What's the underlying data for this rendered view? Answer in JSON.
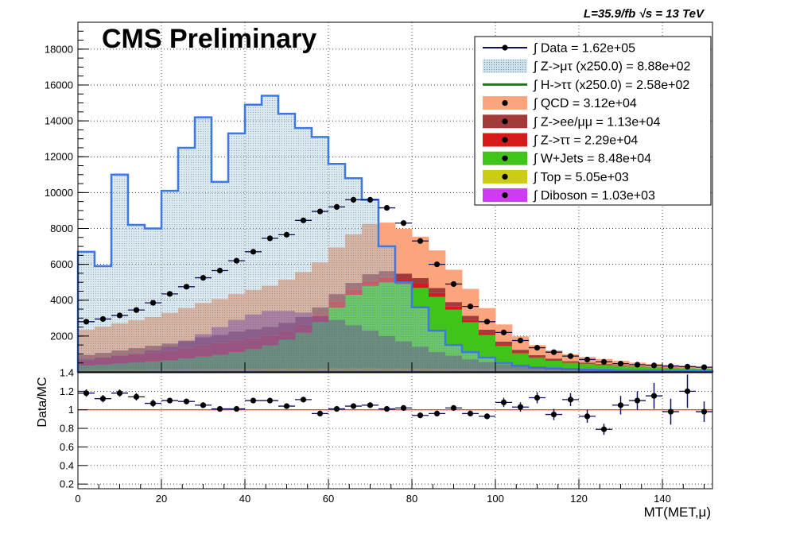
{
  "header": {
    "lumi_label": "L=35.9/fb  √s = 13 TeV",
    "experiment_label": "CMS Preliminary"
  },
  "colors": {
    "data": "#10105e",
    "qcd": "#fca47c",
    "zll": "#a43b3b",
    "ztt": "#d41a1a",
    "wjets": "#41c41a",
    "top": "#cccc14",
    "diboson": "#cc3cf0",
    "zmutau": "#a8c8d8",
    "htt": "#1a7a1a",
    "ratio_line": "#ff0000",
    "grid": "#000000"
  },
  "legend": [
    {
      "key": "data",
      "label": "∫ Data = 1.62e+05",
      "style": "marker"
    },
    {
      "key": "zmutau",
      "label": "∫ Z->μτ (x250.0) = 8.88e+02",
      "style": "hatch"
    },
    {
      "key": "htt",
      "label": "∫ H->ττ (x250.0) = 2.58e+02",
      "style": "line"
    },
    {
      "key": "qcd",
      "label": "∫ QCD = 3.12e+04",
      "style": "fill"
    },
    {
      "key": "zll",
      "label": "∫ Z->ee/μμ = 1.13e+04",
      "style": "fill"
    },
    {
      "key": "ztt",
      "label": "∫ Z->ττ = 2.29e+04",
      "style": "fill"
    },
    {
      "key": "wjets",
      "label": "∫ W+Jets = 8.48e+04",
      "style": "fill"
    },
    {
      "key": "top",
      "label": "∫ Top = 5.05e+03",
      "style": "fill"
    },
    {
      "key": "diboson",
      "label": "∫ Diboson = 1.03e+03",
      "style": "fill"
    }
  ],
  "chart_data": {
    "type": "bar",
    "xlabel": "MT(MET,μ)",
    "ylabel": "",
    "ratio_ylabel": "Data/MC",
    "xlim": [
      0,
      152
    ],
    "ylim": [
      0,
      19500
    ],
    "ratio_ylim": [
      0.15,
      1.4
    ],
    "x_ticks": [
      0,
      20,
      40,
      60,
      80,
      100,
      120,
      140
    ],
    "y_ticks": [
      2000,
      4000,
      6000,
      8000,
      10000,
      12000,
      14000,
      16000,
      18000
    ],
    "ratio_ticks": [
      0.2,
      0.4,
      0.6,
      0.8,
      1,
      1.2,
      1.4
    ],
    "grid": true,
    "legend_position": "top-right",
    "bin_edges": [
      0,
      4,
      8,
      12,
      16,
      20,
      24,
      28,
      32,
      36,
      40,
      44,
      48,
      52,
      56,
      60,
      64,
      68,
      72,
      76,
      80,
      84,
      88,
      92,
      96,
      100,
      104,
      108,
      112,
      116,
      120,
      124,
      128,
      132,
      136,
      140,
      144,
      148,
      152
    ],
    "series": [
      {
        "name": "Diboson",
        "key": "diboson",
        "values": [
          20,
          20,
          25,
          25,
          30,
          30,
          30,
          35,
          35,
          35,
          40,
          40,
          40,
          40,
          40,
          40,
          40,
          40,
          35,
          35,
          30,
          30,
          25,
          25,
          20,
          20,
          15,
          15,
          15,
          10,
          10,
          10,
          10,
          5,
          5,
          5,
          5,
          5
        ]
      },
      {
        "name": "Top",
        "key": "top",
        "values": [
          80,
          85,
          90,
          95,
          100,
          105,
          110,
          115,
          120,
          125,
          130,
          135,
          140,
          140,
          145,
          150,
          150,
          150,
          150,
          150,
          150,
          145,
          140,
          135,
          130,
          125,
          120,
          115,
          110,
          100,
          95,
          90,
          80,
          75,
          70,
          65,
          60,
          55
        ]
      },
      {
        "name": "W+Jets",
        "key": "wjets",
        "values": [
          250,
          300,
          350,
          400,
          450,
          500,
          600,
          700,
          800,
          950,
          1100,
          1300,
          1600,
          2000,
          2600,
          3400,
          4100,
          4600,
          4800,
          4700,
          4500,
          4000,
          3300,
          2600,
          1900,
          1300,
          900,
          650,
          500,
          400,
          330,
          280,
          240,
          200,
          170,
          150,
          130,
          110
        ]
      },
      {
        "name": "Z->ττ",
        "key": "ztt",
        "values": [
          300,
          350,
          400,
          450,
          500,
          550,
          600,
          650,
          650,
          650,
          600,
          550,
          500,
          450,
          400,
          350,
          300,
          300,
          300,
          280,
          260,
          220,
          180,
          150,
          120,
          90,
          70,
          50,
          40,
          30,
          25,
          20,
          15,
          10,
          10,
          8,
          6,
          5
        ]
      },
      {
        "name": "Z->ee/μμ",
        "key": "zll",
        "values": [
          300,
          320,
          340,
          360,
          380,
          400,
          420,
          440,
          460,
          480,
          500,
          480,
          460,
          440,
          420,
          400,
          380,
          360,
          340,
          320,
          300,
          280,
          250,
          220,
          190,
          160,
          130,
          100,
          80,
          60,
          50,
          40,
          30,
          25,
          20,
          15,
          10,
          8
        ]
      },
      {
        "name": "QCD",
        "key": "qcd",
        "values": [
          1400,
          1450,
          1500,
          1550,
          1600,
          1700,
          1800,
          1900,
          2000,
          2100,
          2200,
          2300,
          2400,
          2500,
          2500,
          2600,
          2700,
          2800,
          2700,
          2500,
          2300,
          2100,
          1800,
          1500,
          1200,
          950,
          750,
          560,
          450,
          380,
          320,
          280,
          240,
          200,
          170,
          150,
          130,
          110
        ]
      }
    ],
    "signal_series": [
      {
        "name": "Z->μτ (x250.0)",
        "key": "zmutau",
        "values": [
          6700,
          5900,
          11000,
          8200,
          8000,
          10100,
          12500,
          14200,
          10600,
          13300,
          14900,
          15400,
          14400,
          13600,
          13100,
          11600,
          10800,
          9600,
          7000,
          5000,
          3600,
          2300,
          1500,
          1100,
          800,
          500,
          350,
          250,
          200,
          160,
          130,
          110,
          90,
          80,
          70,
          60,
          50,
          40
        ]
      },
      {
        "name": "H->ττ (x250.0)",
        "key": "htt",
        "values": [
          700,
          800,
          900,
          1000,
          1200,
          1400,
          1700,
          2100,
          2500,
          2900,
          3200,
          3400,
          3400,
          3300,
          3100,
          2900,
          2600,
          2300,
          2000,
          1700,
          1400,
          1100,
          900,
          700,
          550,
          420,
          330,
          260,
          200,
          160,
          130,
          100,
          80,
          70,
          60,
          50,
          40,
          30
        ]
      }
    ],
    "data": {
      "name": "Data",
      "values": [
        2800,
        2950,
        3150,
        3450,
        3850,
        4350,
        4750,
        5250,
        5650,
        6200,
        6700,
        7450,
        7650,
        8450,
        8950,
        9200,
        9600,
        9600,
        9150,
        8300,
        7300,
        6000,
        4900,
        3650,
        2800,
        2200,
        1750,
        1350,
        1100,
        880,
        690,
        560,
        460,
        400,
        360,
        320,
        290,
        260
      ]
    },
    "ratio": {
      "values": [
        1.18,
        1.12,
        1.18,
        1.14,
        1.07,
        1.1,
        1.09,
        1.05,
        1.01,
        1.01,
        1.1,
        1.1,
        1.04,
        1.11,
        0.96,
        1.01,
        1.04,
        1.05,
        1.01,
        1.02,
        0.94,
        0.96,
        1.02,
        0.96,
        0.93,
        1.08,
        1.03,
        1.13,
        0.95,
        1.11,
        0.93,
        0.79,
        1.05,
        1.1,
        1.15,
        0.98,
        1.2,
        0.98
      ],
      "errors": [
        0.04,
        0.04,
        0.04,
        0.04,
        0.04,
        0.03,
        0.03,
        0.03,
        0.03,
        0.03,
        0.03,
        0.03,
        0.03,
        0.03,
        0.03,
        0.03,
        0.03,
        0.03,
        0.03,
        0.03,
        0.03,
        0.03,
        0.03,
        0.03,
        0.03,
        0.05,
        0.05,
        0.06,
        0.06,
        0.07,
        0.07,
        0.06,
        0.1,
        0.1,
        0.14,
        0.14,
        0.18,
        0.11
      ]
    }
  }
}
